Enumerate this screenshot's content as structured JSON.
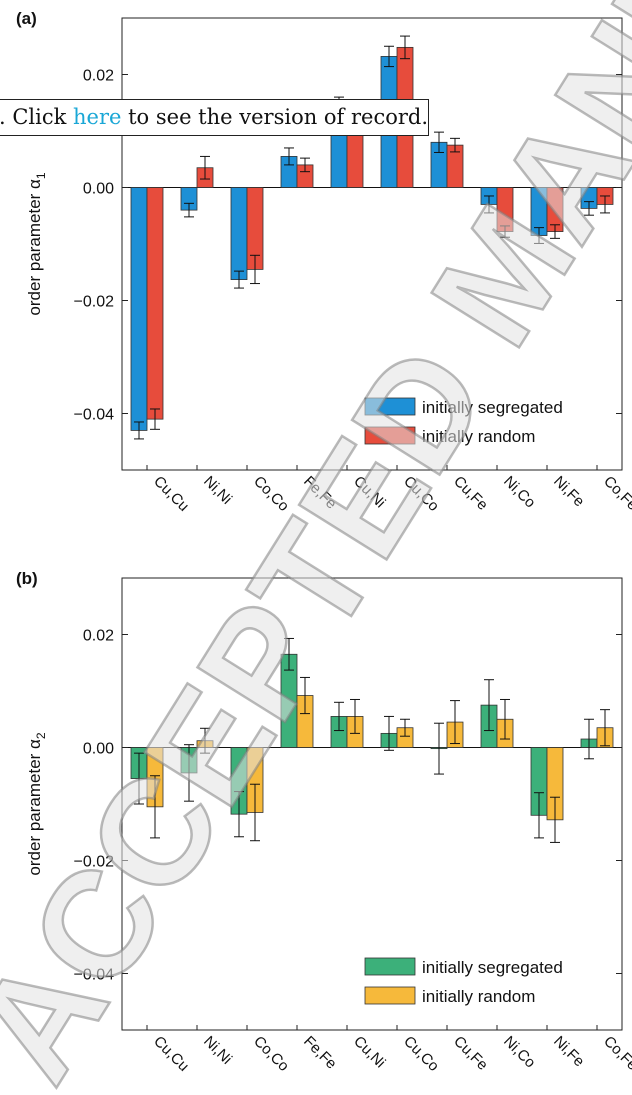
{
  "banner": {
    "prefix": ". Click ",
    "link": "here",
    "suffix": " to see the version of record."
  },
  "watermark": "ACCEPTED MANUSCRIPT",
  "chart_data": [
    {
      "panel_label": "(a)",
      "type": "bar",
      "ylabel": "order parameter α",
      "ylabel_sub": "1",
      "ylim": [
        -0.05,
        0.03
      ],
      "yticks": [
        0.02,
        0.0,
        -0.02,
        -0.04
      ],
      "ytick_labels": [
        "0.02",
        "0.00",
        "−0.02",
        "−0.04"
      ],
      "categories": [
        "Cu,Cu",
        "Ni,Ni",
        "Co,Co",
        "Fe,Fe",
        "Cu,Ni",
        "Cu,Co",
        "Cu,Fe",
        "Ni,Co",
        "Ni,Fe",
        "Co,Fe"
      ],
      "legend_position": "lower right",
      "series": [
        {
          "name": "initially segregated",
          "color": "#1e90d6",
          "values": [
            -0.043,
            -0.004,
            -0.0163,
            0.0055,
            0.0148,
            0.0232,
            0.008,
            -0.003,
            -0.0085,
            -0.0037
          ],
          "err": [
            0.0015,
            0.0012,
            0.0015,
            0.0015,
            0.0012,
            0.0018,
            0.0018,
            0.0015,
            0.0014,
            0.0012
          ]
        },
        {
          "name": "initially random",
          "color": "#e74c3c",
          "values": [
            -0.041,
            0.0035,
            -0.0145,
            0.004,
            0.0115,
            0.0248,
            0.0075,
            -0.0078,
            -0.0078,
            -0.003
          ],
          "err": [
            0.0018,
            0.002,
            0.0025,
            0.0012,
            0.0018,
            0.002,
            0.0012,
            0.001,
            0.0012,
            0.0015
          ]
        }
      ]
    },
    {
      "panel_label": "(b)",
      "type": "bar",
      "ylabel": "order parameter α",
      "ylabel_sub": "2",
      "ylim": [
        -0.05,
        0.03
      ],
      "yticks": [
        0.02,
        0.0,
        -0.02,
        -0.04
      ],
      "ytick_labels": [
        "0.02",
        "0.00",
        "−0.02",
        "−0.04"
      ],
      "categories": [
        "Cu,Cu",
        "Ni,Ni",
        "Co,Co",
        "Fe,Fe",
        "Cu,Ni",
        "Cu,Co",
        "Cu,Fe",
        "Ni,Co",
        "Ni,Fe",
        "Co,Fe"
      ],
      "legend_position": "lower right",
      "series": [
        {
          "name": "initially segregated",
          "color": "#3cb07a",
          "values": [
            -0.0055,
            -0.0045,
            -0.0118,
            0.0165,
            0.0055,
            0.0025,
            -0.0002,
            0.0075,
            -0.012,
            0.0015
          ],
          "err": [
            0.0045,
            0.005,
            0.004,
            0.0028,
            0.0025,
            0.003,
            0.0045,
            0.0045,
            0.004,
            0.0035
          ]
        },
        {
          "name": "initially random",
          "color": "#f6b93b",
          "values": [
            -0.0105,
            0.0012,
            -0.0115,
            0.0092,
            0.0055,
            0.0035,
            0.0045,
            0.005,
            -0.0128,
            0.0035
          ],
          "err": [
            0.0055,
            0.0022,
            0.005,
            0.0032,
            0.003,
            0.0015,
            0.0038,
            0.0035,
            0.004,
            0.0032
          ]
        }
      ]
    }
  ]
}
